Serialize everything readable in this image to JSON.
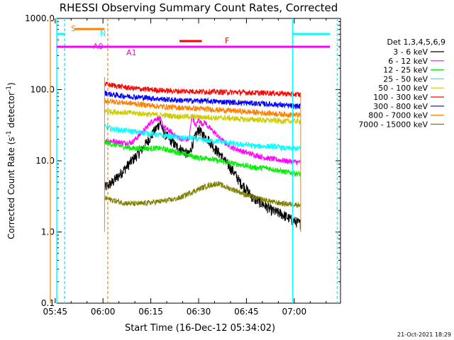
{
  "chart_data": {
    "type": "line",
    "title": "RHESSI Observing Summary Count Rates, Corrected",
    "xlabel": "Start Time (16-Dec-12 05:34:02)",
    "ylabel_main": "Corrected Count Rate (s",
    "ylabel_sup": "-1",
    "ylabel_mid": " detector",
    "ylabel_close": ")",
    "yscale": "log",
    "ylim": [
      0.1,
      1000
    ],
    "xlim_minutes": [
      -14.5,
      74.5
    ],
    "yticks": [
      {
        "v": 0.1,
        "label": "0.1"
      },
      {
        "v": 1,
        "label": "1.0"
      },
      {
        "v": 10,
        "label": "10.0"
      },
      {
        "v": 100,
        "label": "100.0"
      },
      {
        "v": 1000,
        "label": "1000.0"
      }
    ],
    "xticks": [
      {
        "m": -15,
        "label": "05:45"
      },
      {
        "m": 0,
        "label": "06:00"
      },
      {
        "m": 15,
        "label": "06:15"
      },
      {
        "m": 30,
        "label": "06:30"
      },
      {
        "m": 45,
        "label": "06:45"
      },
      {
        "m": 60,
        "label": "07:00"
      }
    ],
    "legend_title": "Det 1,3,4,5,6,9",
    "legend_placement": "right",
    "data_span_minutes": [
      0.5,
      62.0
    ],
    "series": [
      {
        "name": "3 - 6 keV",
        "color": "#000000",
        "points": [
          [
            0.5,
            4.2
          ],
          [
            3,
            5
          ],
          [
            6,
            7
          ],
          [
            9,
            10
          ],
          [
            12,
            14
          ],
          [
            15,
            22
          ],
          [
            17,
            30
          ],
          [
            18,
            35
          ],
          [
            19,
            25
          ],
          [
            21,
            20
          ],
          [
            23,
            16
          ],
          [
            25,
            14
          ],
          [
            27,
            12
          ],
          [
            28,
            17
          ],
          [
            29,
            22
          ],
          [
            30,
            28
          ],
          [
            31,
            24
          ],
          [
            33,
            20
          ],
          [
            35,
            15
          ],
          [
            37,
            12
          ],
          [
            39,
            9
          ],
          [
            41,
            7
          ],
          [
            43,
            5
          ],
          [
            45,
            4
          ],
          [
            47,
            3
          ],
          [
            50,
            2.5
          ],
          [
            53,
            2
          ],
          [
            56,
            1.8
          ],
          [
            59,
            1.5
          ],
          [
            62,
            1.3
          ]
        ]
      },
      {
        "name": "6 - 12 keV",
        "color": "#ff00ff",
        "points": [
          [
            0.5,
            19
          ],
          [
            3,
            19
          ],
          [
            6,
            18
          ],
          [
            9,
            18
          ],
          [
            11,
            22
          ],
          [
            13,
            27
          ],
          [
            15,
            35
          ],
          [
            17,
            40
          ],
          [
            18,
            38
          ],
          [
            19,
            30
          ],
          [
            21,
            26
          ],
          [
            23,
            22
          ],
          [
            25,
            20
          ],
          [
            27,
            20
          ],
          [
            28,
            45
          ],
          [
            29,
            30
          ],
          [
            30,
            38
          ],
          [
            31,
            33
          ],
          [
            32,
            35
          ],
          [
            33,
            30
          ],
          [
            35,
            25
          ],
          [
            37,
            20
          ],
          [
            39,
            17
          ],
          [
            41,
            15
          ],
          [
            43,
            14
          ],
          [
            45,
            13
          ],
          [
            48,
            12
          ],
          [
            51,
            11
          ],
          [
            54,
            10.5
          ],
          [
            57,
            10
          ],
          [
            62,
            9.5
          ]
        ]
      },
      {
        "name": "12 - 25 keV",
        "color": "#00ee00",
        "points": [
          [
            0.5,
            18
          ],
          [
            3,
            17
          ],
          [
            6,
            16
          ],
          [
            9,
            15
          ],
          [
            12,
            15
          ],
          [
            15,
            15
          ],
          [
            18,
            15
          ],
          [
            21,
            14
          ],
          [
            24,
            13
          ],
          [
            27,
            12
          ],
          [
            30,
            11
          ],
          [
            33,
            11
          ],
          [
            36,
            10
          ],
          [
            39,
            9.5
          ],
          [
            42,
            9
          ],
          [
            45,
            8.5
          ],
          [
            48,
            8
          ],
          [
            51,
            8
          ],
          [
            54,
            7.5
          ],
          [
            57,
            7
          ],
          [
            62,
            6.5
          ]
        ]
      },
      {
        "name": "25 - 50 keV",
        "color": "#00ffff",
        "points": [
          [
            0.5,
            30
          ],
          [
            3,
            28
          ],
          [
            6,
            27
          ],
          [
            9,
            26
          ],
          [
            12,
            25
          ],
          [
            15,
            24
          ],
          [
            18,
            23
          ],
          [
            21,
            22
          ],
          [
            24,
            21
          ],
          [
            27,
            21
          ],
          [
            30,
            20
          ],
          [
            33,
            19
          ],
          [
            36,
            19
          ],
          [
            39,
            18
          ],
          [
            42,
            17
          ],
          [
            45,
            17
          ],
          [
            48,
            16
          ],
          [
            51,
            16
          ],
          [
            54,
            16
          ],
          [
            57,
            15
          ],
          [
            62,
            15
          ]
        ]
      },
      {
        "name": "50 - 100 keV",
        "color": "#cccc00",
        "points": [
          [
            0.5,
            50
          ],
          [
            3,
            49
          ],
          [
            6,
            48
          ],
          [
            9,
            47
          ],
          [
            12,
            46
          ],
          [
            15,
            45
          ],
          [
            18,
            44
          ],
          [
            21,
            43
          ],
          [
            24,
            42
          ],
          [
            27,
            42
          ],
          [
            30,
            41
          ],
          [
            33,
            41
          ],
          [
            36,
            40
          ],
          [
            39,
            40
          ],
          [
            42,
            39
          ],
          [
            45,
            38
          ],
          [
            48,
            38
          ],
          [
            51,
            37
          ],
          [
            54,
            37
          ],
          [
            57,
            36
          ],
          [
            62,
            36
          ]
        ]
      },
      {
        "name": "100 - 300 keV",
        "color": "#ff0000",
        "points": [
          [
            0.5,
            120
          ],
          [
            3,
            115
          ],
          [
            6,
            110
          ],
          [
            9,
            105
          ],
          [
            12,
            102
          ],
          [
            15,
            100
          ],
          [
            18,
            98
          ],
          [
            21,
            96
          ],
          [
            24,
            95
          ],
          [
            27,
            95
          ],
          [
            30,
            94
          ],
          [
            33,
            94
          ],
          [
            36,
            93
          ],
          [
            39,
            92
          ],
          [
            42,
            92
          ],
          [
            45,
            91
          ],
          [
            48,
            90
          ],
          [
            51,
            90
          ],
          [
            54,
            89
          ],
          [
            57,
            88
          ],
          [
            62,
            85
          ]
        ]
      },
      {
        "name": "300 - 800 keV",
        "color": "#0000ff",
        "points": [
          [
            0.5,
            90
          ],
          [
            3,
            85
          ],
          [
            6,
            82
          ],
          [
            9,
            80
          ],
          [
            12,
            78
          ],
          [
            15,
            76
          ],
          [
            18,
            74
          ],
          [
            21,
            72
          ],
          [
            24,
            71
          ],
          [
            27,
            70
          ],
          [
            30,
            70
          ],
          [
            33,
            69
          ],
          [
            36,
            68
          ],
          [
            39,
            67
          ],
          [
            42,
            66
          ],
          [
            45,
            65
          ],
          [
            48,
            64
          ],
          [
            51,
            63
          ],
          [
            54,
            62
          ],
          [
            57,
            60
          ],
          [
            62,
            58
          ]
        ]
      },
      {
        "name": "800 - 7000 keV",
        "color": "#ff8000",
        "points": [
          [
            0.5,
            70
          ],
          [
            3,
            68
          ],
          [
            6,
            66
          ],
          [
            9,
            64
          ],
          [
            12,
            62
          ],
          [
            15,
            60
          ],
          [
            18,
            58
          ],
          [
            21,
            57
          ],
          [
            24,
            56
          ],
          [
            27,
            55
          ],
          [
            30,
            54
          ],
          [
            33,
            53
          ],
          [
            36,
            52
          ],
          [
            39,
            51
          ],
          [
            42,
            50
          ],
          [
            45,
            49
          ],
          [
            48,
            48
          ],
          [
            51,
            47
          ],
          [
            54,
            46
          ],
          [
            57,
            45
          ],
          [
            62,
            44
          ]
        ]
      },
      {
        "name": "7000 - 15000 keV",
        "color": "#808000",
        "points": [
          [
            0.5,
            3
          ],
          [
            3,
            2.8
          ],
          [
            6,
            2.6
          ],
          [
            9,
            2.5
          ],
          [
            12,
            2.5
          ],
          [
            15,
            2.6
          ],
          [
            18,
            2.7
          ],
          [
            21,
            2.8
          ],
          [
            24,
            3
          ],
          [
            27,
            3.5
          ],
          [
            30,
            4
          ],
          [
            33,
            4.5
          ],
          [
            36,
            4.8
          ],
          [
            39,
            4.2
          ],
          [
            42,
            3.8
          ],
          [
            45,
            3.3
          ],
          [
            48,
            3
          ],
          [
            51,
            2.8
          ],
          [
            54,
            2.6
          ],
          [
            57,
            2.5
          ],
          [
            62,
            2.4
          ]
        ]
      }
    ],
    "annotations": {
      "S": {
        "label": "S",
        "color": "#ff8000"
      },
      "N": {
        "label": "N",
        "color": "#00ffff"
      },
      "A0": {
        "label": "A0",
        "color": "#ff00ff"
      },
      "A1": {
        "label": "A1",
        "color": "#ff00ff"
      },
      "F": {
        "label": "F",
        "color": "#ff0000"
      }
    },
    "footer": "21-Oct-2021 18:29"
  }
}
